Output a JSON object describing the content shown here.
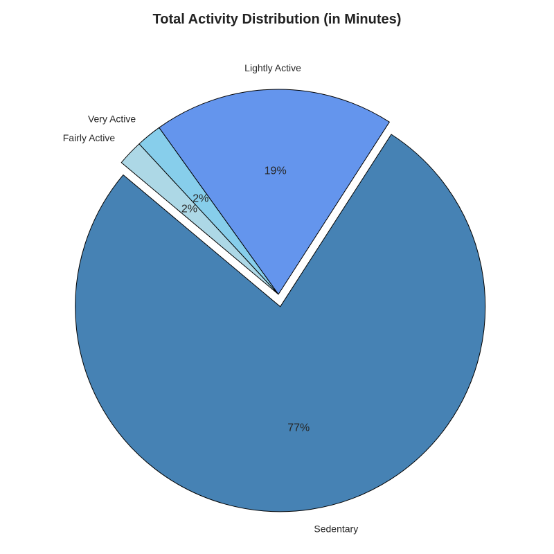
{
  "chart_data": {
    "type": "pie",
    "title": "Total Activity Distribution (in Minutes)",
    "categories": [
      "Sedentary",
      "Lightly Active",
      "Very Active",
      "Fairly Active"
    ],
    "values": [
      77,
      19,
      2,
      2
    ],
    "percent_labels": [
      "77%",
      "19%",
      "2%",
      "2%"
    ],
    "colors": [
      "#4682b4",
      "#6495ed",
      "#87ceeb",
      "#add8e6"
    ],
    "exploded": [
      "Sedentary"
    ],
    "start_angle_deg": 140,
    "direction": "counterclockwise",
    "edge_color": "#000000"
  }
}
